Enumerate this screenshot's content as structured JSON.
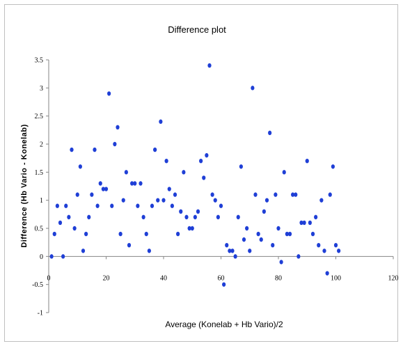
{
  "chart_data": {
    "type": "scatter",
    "title": "Difference plot",
    "xlabel": "Average (Konelab + Hb Vario)/2",
    "ylabel": "Difference (Hb Vario - Konelab)",
    "xlim": [
      0,
      120
    ],
    "ylim": [
      -1,
      3.5
    ],
    "x_ticks": [
      "0",
      "20",
      "40",
      "60",
      "80",
      "100",
      "120"
    ],
    "y_ticks": [
      "-1",
      "-0.5",
      "0",
      "0.5",
      "1",
      "1.5",
      "2",
      "2.5",
      "3",
      "3.5"
    ],
    "grid": false,
    "legend": "none",
    "marker_color": "#1f3fd6",
    "series": [
      {
        "points": [
          [
            1,
            0.0
          ],
          [
            2,
            0.4
          ],
          [
            3,
            0.9
          ],
          [
            4,
            0.6
          ],
          [
            5,
            0.0
          ],
          [
            6,
            0.9
          ],
          [
            7,
            0.7
          ],
          [
            8,
            1.9
          ],
          [
            9,
            0.5
          ],
          [
            10,
            1.1
          ],
          [
            11,
            1.6
          ],
          [
            12,
            0.1
          ],
          [
            13,
            0.4
          ],
          [
            14,
            0.7
          ],
          [
            15,
            1.1
          ],
          [
            16,
            1.9
          ],
          [
            17,
            0.9
          ],
          [
            18,
            1.3
          ],
          [
            19,
            1.2
          ],
          [
            20,
            1.2
          ],
          [
            21,
            2.9
          ],
          [
            22,
            0.9
          ],
          [
            23,
            2.0
          ],
          [
            24,
            2.3
          ],
          [
            25,
            0.4
          ],
          [
            26,
            1.0
          ],
          [
            27,
            1.5
          ],
          [
            28,
            0.2
          ],
          [
            29,
            1.3
          ],
          [
            30,
            1.3
          ],
          [
            31,
            0.9
          ],
          [
            32,
            1.3
          ],
          [
            33,
            0.7
          ],
          [
            34,
            0.4
          ],
          [
            35,
            0.1
          ],
          [
            36,
            0.9
          ],
          [
            37,
            1.9
          ],
          [
            38,
            1.0
          ],
          [
            39,
            2.4
          ],
          [
            40,
            1.0
          ],
          [
            41,
            1.7
          ],
          [
            42,
            1.2
          ],
          [
            43,
            0.9
          ],
          [
            44,
            1.1
          ],
          [
            45,
            0.4
          ],
          [
            46,
            0.8
          ],
          [
            47,
            1.5
          ],
          [
            48,
            0.7
          ],
          [
            49,
            0.5
          ],
          [
            50,
            0.5
          ],
          [
            51,
            0.7
          ],
          [
            52,
            0.8
          ],
          [
            53,
            1.7
          ],
          [
            54,
            1.4
          ],
          [
            55,
            1.8
          ],
          [
            56,
            3.4
          ],
          [
            57,
            1.1
          ],
          [
            58,
            1.0
          ],
          [
            59,
            0.7
          ],
          [
            60,
            0.9
          ],
          [
            61,
            -0.5
          ],
          [
            62,
            0.2
          ],
          [
            63,
            0.1
          ],
          [
            64,
            0.1
          ],
          [
            65,
            0.0
          ],
          [
            66,
            0.7
          ],
          [
            67,
            1.6
          ],
          [
            68,
            0.3
          ],
          [
            69,
            0.5
          ],
          [
            70,
            0.1
          ],
          [
            71,
            3.0
          ],
          [
            72,
            1.1
          ],
          [
            73,
            0.4
          ],
          [
            74,
            0.3
          ],
          [
            75,
            0.8
          ],
          [
            76,
            1.0
          ],
          [
            77,
            2.2
          ],
          [
            78,
            0.2
          ],
          [
            79,
            1.1
          ],
          [
            80,
            0.5
          ],
          [
            81,
            -0.1
          ],
          [
            82,
            1.5
          ],
          [
            83,
            0.4
          ],
          [
            84,
            0.4
          ],
          [
            85,
            1.1
          ],
          [
            86,
            1.1
          ],
          [
            87,
            0.0
          ],
          [
            88,
            0.6
          ],
          [
            89,
            0.6
          ],
          [
            90,
            1.7
          ],
          [
            91,
            0.6
          ],
          [
            92,
            0.4
          ],
          [
            93,
            0.7
          ],
          [
            94,
            0.2
          ],
          [
            95,
            1.0
          ],
          [
            96,
            0.1
          ],
          [
            97,
            -0.3
          ],
          [
            98,
            1.1
          ],
          [
            99,
            1.6
          ],
          [
            100,
            0.2
          ],
          [
            101,
            0.1
          ]
        ]
      }
    ]
  }
}
